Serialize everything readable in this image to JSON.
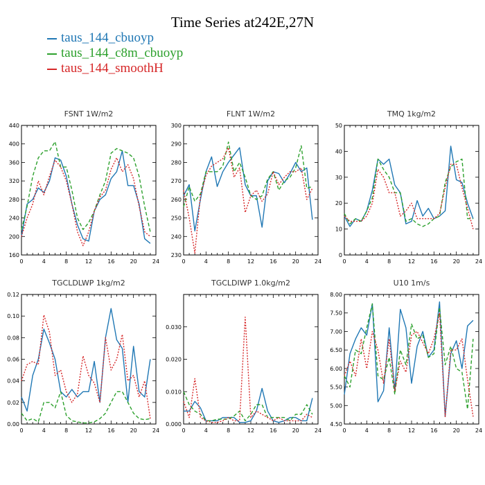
{
  "title": "Time Series at242E,27N",
  "colors": {
    "taus_144_cbuoyp": "#1f77b4",
    "taus_144_c8m_cbuoyp": "#2ca02c",
    "taus_144_smoothH": "#d62728"
  },
  "legend": [
    {
      "name": "taus_144_cbuoyp",
      "color": "#1f77b4"
    },
    {
      "name": "taus_144_c8m_cbuoyp",
      "color": "#2ca02c"
    },
    {
      "name": "taus_144_smoothH",
      "color": "#d62728"
    }
  ],
  "chart_data": [
    {
      "type": "line",
      "title": "FSNT   1W/m2",
      "xlim": [
        0,
        24
      ],
      "xticks": [
        0,
        4,
        8,
        12,
        16,
        20,
        24
      ],
      "ylim": [
        160,
        440
      ],
      "yticks": [
        160,
        200,
        240,
        280,
        320,
        360,
        400,
        440
      ],
      "ytick_labels": [
        "160",
        "200",
        "240",
        "280",
        "320",
        "360",
        "400",
        "440"
      ],
      "x": [
        0,
        1,
        2,
        3,
        4,
        5,
        6,
        7,
        8,
        9,
        10,
        11,
        12,
        13,
        14,
        15,
        16,
        17,
        18,
        19,
        20,
        21,
        22,
        23
      ],
      "series": [
        {
          "name": "taus_144_cbuoyp",
          "values": [
            200,
            270,
            280,
            305,
            295,
            320,
            370,
            365,
            330,
            270,
            225,
            195,
            190,
            255,
            280,
            290,
            325,
            340,
            385,
            310,
            310,
            270,
            195,
            185
          ]
        },
        {
          "name": "taus_144_c8m_cbuoyp",
          "values": [
            215,
            265,
            330,
            370,
            385,
            385,
            405,
            350,
            350,
            300,
            240,
            215,
            230,
            255,
            290,
            320,
            380,
            390,
            385,
            380,
            370,
            330,
            265,
            210
          ]
        },
        {
          "name": "taus_144_smoothH",
          "values": [
            200,
            240,
            270,
            320,
            290,
            330,
            365,
            350,
            320,
            270,
            210,
            180,
            210,
            255,
            285,
            300,
            345,
            370,
            340,
            355,
            325,
            265,
            210,
            200
          ]
        }
      ]
    },
    {
      "type": "line",
      "title": "FLNT   1W/m2",
      "xlim": [
        0,
        24
      ],
      "xticks": [
        0,
        4,
        8,
        12,
        16,
        20,
        24
      ],
      "ylim": [
        230,
        300
      ],
      "yticks": [
        230,
        240,
        250,
        260,
        270,
        280,
        290,
        300
      ],
      "ytick_labels": [
        "230",
        "240",
        "250",
        "260",
        "270",
        "280",
        "290",
        "300"
      ],
      "x": [
        0,
        1,
        2,
        3,
        4,
        5,
        6,
        7,
        8,
        9,
        10,
        11,
        12,
        13,
        14,
        15,
        16,
        17,
        18,
        19,
        20,
        21,
        22,
        23
      ],
      "series": [
        {
          "name": "taus_144_cbuoyp",
          "values": [
            262,
            268,
            243,
            260,
            275,
            283,
            267,
            275,
            280,
            284,
            288,
            268,
            262,
            262,
            245,
            270,
            275,
            274,
            269,
            274,
            280,
            275,
            277,
            249
          ]
        },
        {
          "name": "taus_144_c8m_cbuoyp",
          "values": [
            256,
            267,
            259,
            263,
            275,
            275,
            275,
            278,
            291,
            275,
            280,
            272,
            262,
            260,
            262,
            271,
            275,
            265,
            270,
            272,
            277,
            289,
            266,
            267
          ]
        },
        {
          "name": "taus_144_smoothH",
          "values": [
            265,
            250,
            231,
            262,
            273,
            278,
            280,
            282,
            288,
            272,
            277,
            253,
            262,
            265,
            259,
            263,
            275,
            268,
            272,
            275,
            275,
            277,
            260,
            266
          ]
        }
      ]
    },
    {
      "type": "line",
      "title": "TMQ   1kg/m2",
      "xlim": [
        0,
        24
      ],
      "xticks": [
        0,
        4,
        8,
        12,
        16,
        20,
        24
      ],
      "ylim": [
        0,
        50
      ],
      "yticks": [
        0,
        10,
        20,
        30,
        40,
        50
      ],
      "ytick_labels": [
        "0",
        "10",
        "20",
        "30",
        "40",
        "50"
      ],
      "x": [
        0,
        1,
        2,
        3,
        4,
        5,
        6,
        7,
        8,
        9,
        10,
        11,
        12,
        13,
        14,
        15,
        16,
        17,
        18,
        19,
        20,
        21,
        22,
        23
      ],
      "series": [
        {
          "name": "taus_144_cbuoyp",
          "values": [
            15,
            11,
            14,
            13,
            17,
            25,
            37,
            35,
            37,
            27,
            24,
            12,
            13,
            21,
            15,
            18,
            14,
            15,
            17,
            42,
            29,
            28,
            20,
            14
          ]
        },
        {
          "name": "taus_144_c8m_cbuoyp",
          "values": [
            16,
            12,
            14,
            13,
            17,
            22,
            37,
            33,
            30,
            24,
            24,
            13,
            14,
            12,
            11,
            12,
            14,
            15,
            28,
            34,
            36,
            37,
            14,
            14
          ]
        },
        {
          "name": "taus_144_smoothH",
          "values": [
            15,
            13,
            13,
            13,
            15,
            20,
            33,
            30,
            24,
            24,
            15,
            17,
            20,
            14,
            14,
            14,
            14,
            16,
            26,
            35,
            35,
            26,
            18,
            10
          ]
        }
      ]
    },
    {
      "type": "line",
      "title": "TGCLDLWP   1kg/m2",
      "xlim": [
        0,
        24
      ],
      "xticks": [
        0,
        4,
        8,
        12,
        16,
        20,
        24
      ],
      "ylim": [
        0,
        0.12
      ],
      "yticks": [
        0,
        0.02,
        0.04,
        0.06,
        0.08,
        0.1,
        0.12
      ],
      "ytick_labels": [
        "0.00",
        "0.02",
        "0.04",
        "0.06",
        "0.08",
        "0.10",
        "0.12"
      ],
      "x": [
        0,
        1,
        2,
        3,
        4,
        5,
        6,
        7,
        8,
        9,
        10,
        11,
        12,
        13,
        14,
        15,
        16,
        17,
        18,
        19,
        20,
        21,
        22,
        23
      ],
      "series": [
        {
          "name": "taus_144_cbuoyp",
          "values": [
            0.025,
            0.012,
            0.045,
            0.06,
            0.088,
            0.075,
            0.06,
            0.03,
            0.025,
            0.032,
            0.025,
            0.03,
            0.03,
            0.058,
            0.02,
            0.08,
            0.107,
            0.078,
            0.07,
            0.02,
            0.072,
            0.03,
            0.025,
            0.06
          ]
        },
        {
          "name": "taus_144_c8m_cbuoyp",
          "values": [
            0.01,
            0.003,
            0.005,
            0.002,
            0.02,
            0.02,
            0.015,
            0.03,
            0.008,
            0.003,
            0.002,
            0.001,
            0.001,
            0.002,
            0.005,
            0.01,
            0.02,
            0.03,
            0.03,
            0.02,
            0.01,
            0.005,
            0.004,
            0.005
          ]
        },
        {
          "name": "taus_144_smoothH",
          "values": [
            0.04,
            0.055,
            0.058,
            0.055,
            0.101,
            0.085,
            0.045,
            0.05,
            0.03,
            0.02,
            0.028,
            0.063,
            0.045,
            0.038,
            0.02,
            0.08,
            0.05,
            0.06,
            0.083,
            0.04,
            0.045,
            0.025,
            0.04,
            0.005
          ]
        }
      ]
    },
    {
      "type": "line",
      "title": "TGCLDIWP   1.0kg/m2",
      "xlim": [
        0,
        24
      ],
      "xticks": [
        0,
        4,
        8,
        12,
        16,
        20,
        24
      ],
      "ylim": [
        0,
        0.04
      ],
      "yticks": [
        0,
        0.01,
        0.02,
        0.03
      ],
      "ytick_labels": [
        "0.000",
        "0.010",
        "0.020",
        "0.030"
      ],
      "x": [
        0,
        1,
        2,
        3,
        4,
        5,
        6,
        7,
        8,
        9,
        10,
        11,
        12,
        13,
        14,
        15,
        16,
        17,
        18,
        19,
        20,
        21,
        22,
        23
      ],
      "series": [
        {
          "name": "taus_144_cbuoyp",
          "values": [
            0.004,
            0.004,
            0.007,
            0.005,
            0.001,
            0.001,
            0.001,
            0.002,
            0.002,
            0.002,
            0.0005,
            0.0005,
            0.001,
            0.004,
            0.011,
            0.004,
            0.001,
            0.0005,
            0.001,
            0.002,
            0.002,
            0.001,
            0.001,
            0.008
          ]
        },
        {
          "name": "taus_144_c8m_cbuoyp",
          "values": [
            0.01,
            0.006,
            0.004,
            0.003,
            0.001,
            0.001,
            0.0015,
            0.0015,
            0.0015,
            0.0025,
            0.004,
            0.001,
            0.003,
            0.006,
            0.006,
            0.002,
            0.002,
            0.002,
            0.002,
            0.001,
            0.003,
            0.003,
            0.006,
            0.003
          ]
        },
        {
          "name": "taus_144_smoothH",
          "values": [
            0.007,
            0.002,
            0.014,
            0.002,
            0.001,
            0.0005,
            0.0005,
            0.001,
            0.002,
            0.001,
            0.001,
            0.033,
            0.002,
            0.004,
            0.003,
            0.002,
            0.001,
            0.002,
            0.001,
            0.001,
            0.001,
            0.001,
            0.003,
            0.002
          ]
        }
      ]
    },
    {
      "type": "line",
      "title": "U10   1m/s",
      "xlim": [
        0,
        24
      ],
      "xticks": [
        0,
        4,
        8,
        12,
        16,
        20,
        24
      ],
      "ylim": [
        4.5,
        8
      ],
      "yticks": [
        4.5,
        5,
        5.5,
        6,
        6.5,
        7,
        7.5,
        8
      ],
      "ytick_labels": [
        "4.50",
        "5.00",
        "5.50",
        "6.00",
        "6.50",
        "7.00",
        "7.50",
        "8.00"
      ],
      "x": [
        0,
        1,
        2,
        3,
        4,
        5,
        6,
        7,
        8,
        9,
        10,
        11,
        12,
        13,
        14,
        15,
        16,
        17,
        18,
        19,
        20,
        21,
        22,
        23
      ],
      "series": [
        {
          "name": "taus_144_cbuoyp",
          "values": [
            5.3,
            6.4,
            6.8,
            7.1,
            6.9,
            7.75,
            5.1,
            5.4,
            7.1,
            5.4,
            7.6,
            7.1,
            5.6,
            6.6,
            7.0,
            6.3,
            6.5,
            7.8,
            4.7,
            6.4,
            6.75,
            6.0,
            7.15,
            7.3
          ]
        },
        {
          "name": "taus_144_c8m_cbuoyp",
          "values": [
            5.8,
            5.5,
            6.5,
            6.4,
            7.1,
            7.75,
            5.8,
            5.7,
            6.3,
            5.3,
            6.5,
            6.1,
            7.2,
            6.8,
            6.9,
            6.3,
            6.4,
            7.65,
            6.1,
            6.6,
            6.0,
            5.9,
            4.9,
            6.8
          ]
        },
        {
          "name": "taus_144_smoothH",
          "values": [
            5.8,
            6.2,
            5.8,
            6.8,
            6.0,
            7.0,
            6.5,
            5.6,
            6.8,
            5.4,
            6.2,
            5.9,
            6.9,
            7.0,
            6.7,
            6.4,
            6.8,
            7.5,
            4.7,
            6.5,
            6.5,
            6.8,
            5.7,
            4.7
          ]
        }
      ]
    }
  ]
}
